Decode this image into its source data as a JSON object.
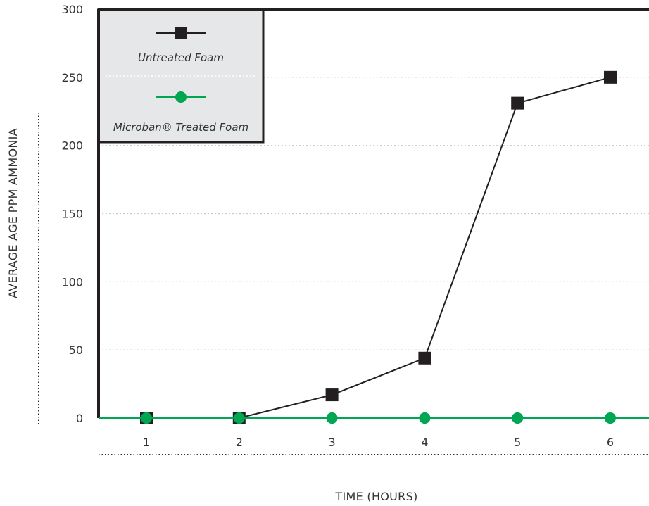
{
  "chart_data": {
    "type": "line",
    "title": "",
    "xlabel": "TIME (HOURS)",
    "ylabel": "AVERAGE AGE PPM AMMONIA",
    "x": [
      1,
      2,
      3,
      4,
      5,
      6
    ],
    "x_tick_labels": [
      "1",
      "2",
      "3",
      "4",
      "5",
      "6"
    ],
    "y_tick_labels": [
      "0",
      "50",
      "100",
      "150",
      "200",
      "250",
      "300"
    ],
    "ylim": [
      0,
      300
    ],
    "grid": "horizontal dotted",
    "legend_position": "top-left",
    "series": [
      {
        "name": "Untreated Foam",
        "values": [
          0,
          0,
          17,
          44,
          231,
          250
        ],
        "marker": "square",
        "color": "#231f20"
      },
      {
        "name": "Microban® Treated Foam",
        "values": [
          0,
          0,
          0,
          0,
          0,
          0
        ],
        "marker": "circle",
        "color": "#00a651"
      }
    ]
  },
  "colors": {
    "axis": "#231f20",
    "legend_bg": "#e6e7e8",
    "grid": "#c8c8c8"
  }
}
